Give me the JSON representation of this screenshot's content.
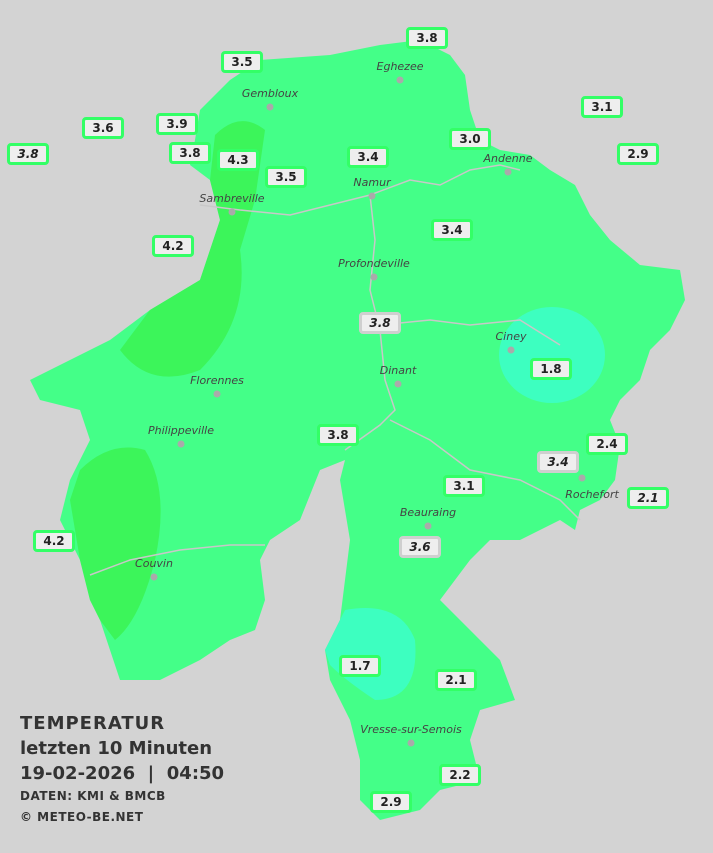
{
  "legend": {
    "title": "TEMPERATUR",
    "period": "letzten 10 Minuten",
    "datetime": "19-02-2026  |  04:50",
    "source": "DATEN: KMI & BMCB",
    "copyright": "© METEO-BE.NET"
  },
  "colors": {
    "background": "#d3d3d3",
    "base_fill": "#44ff88",
    "warm_fill": "#3cf55a",
    "cold_fill": "#3dffc0",
    "label_border": "#33ff66"
  },
  "cities": [
    {
      "name": "Eghezee"
    },
    {
      "name": "Gembloux"
    },
    {
      "name": "Andenne"
    },
    {
      "name": "Namur"
    },
    {
      "name": "Sambreville"
    },
    {
      "name": "Profondeville"
    },
    {
      "name": "Ciney"
    },
    {
      "name": "Dinant"
    },
    {
      "name": "Florennes"
    },
    {
      "name": "Philippeville"
    },
    {
      "name": "Rochefort"
    },
    {
      "name": "Beauraing"
    },
    {
      "name": "Couvin"
    },
    {
      "name": "Vresse-sur-Semois"
    }
  ],
  "stations": [
    {
      "value": "3.8",
      "style": "normal"
    },
    {
      "value": "3.5",
      "style": "normal"
    },
    {
      "value": "3.1",
      "style": "normal"
    },
    {
      "value": "3.6",
      "style": "normal"
    },
    {
      "value": "3.9",
      "style": "normal"
    },
    {
      "value": "3.8",
      "style": "italic"
    },
    {
      "value": "3.8",
      "style": "normal"
    },
    {
      "value": "4.3",
      "style": "normal"
    },
    {
      "value": "3.0",
      "style": "normal"
    },
    {
      "value": "2.9",
      "style": "normal"
    },
    {
      "value": "3.4",
      "style": "normal"
    },
    {
      "value": "3.5",
      "style": "normal"
    },
    {
      "value": "3.4",
      "style": "normal"
    },
    {
      "value": "4.2",
      "style": "normal"
    },
    {
      "value": "3.8",
      "style": "italic"
    },
    {
      "value": "1.8",
      "style": "normal"
    },
    {
      "value": "3.8",
      "style": "normal"
    },
    {
      "value": "2.4",
      "style": "normal"
    },
    {
      "value": "3.4",
      "style": "italic"
    },
    {
      "value": "3.1",
      "style": "normal"
    },
    {
      "value": "2.1",
      "style": "italic"
    },
    {
      "value": "3.6",
      "style": "italic"
    },
    {
      "value": "4.2",
      "style": "normal"
    },
    {
      "value": "1.7",
      "style": "normal"
    },
    {
      "value": "2.1",
      "style": "normal"
    },
    {
      "value": "2.2",
      "style": "normal"
    },
    {
      "value": "2.9",
      "style": "normal"
    }
  ]
}
